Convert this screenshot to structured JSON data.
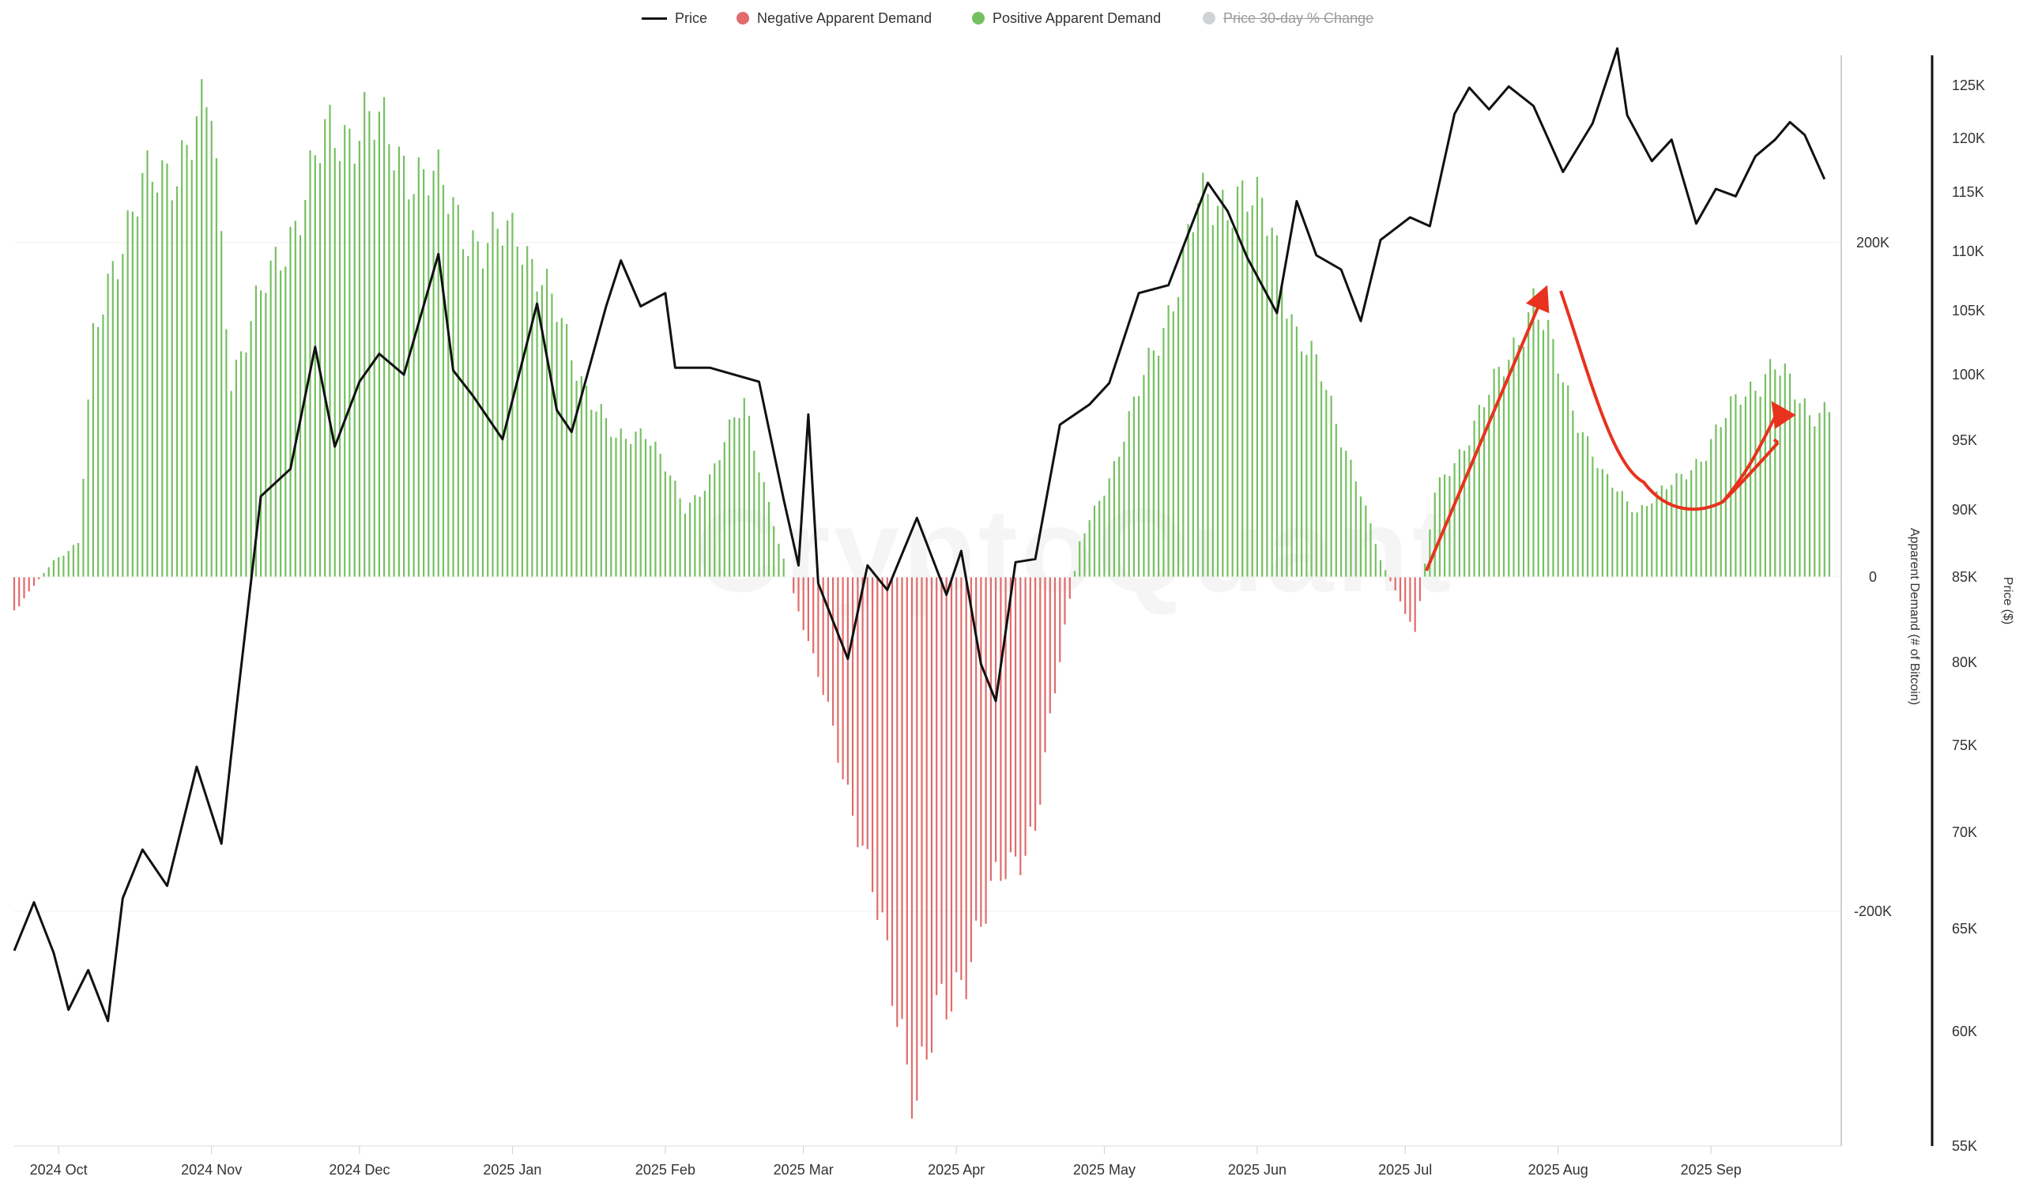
{
  "legend": {
    "price": "Price",
    "negative": "Negative Apparent Demand",
    "positive": "Positive Apparent Demand",
    "pct_change": "Price 30-day % Change"
  },
  "colors": {
    "price": "#111111",
    "negative": "#e06c6c",
    "positive": "#76c061",
    "disabled": "#cfd2d6",
    "annotation": "#e8321e"
  },
  "watermark": "CryptoQuant",
  "chart_data": {
    "type": "bar+line",
    "x_ticks": [
      "2024 Oct",
      "2024 Nov",
      "2024 Dec",
      "2025 Jan",
      "2025 Feb",
      "2025 Mar",
      "2025 Apr",
      "2025 May",
      "2025 Jun",
      "2025 Jul",
      "2025 Aug",
      "2025 Sep"
    ],
    "y_left_label": "Apparent Demand (# of Bitcoin)",
    "y_left_ticks": [
      "200K",
      "0",
      "-200K"
    ],
    "y_left_lim": [
      -330000,
      300000
    ],
    "y_right_label": "Price ($)",
    "y_right_ticks": [
      "125K",
      "120K",
      "115K",
      "110K",
      "105K",
      "100K",
      "95K",
      "90K",
      "85K",
      "80K",
      "75K",
      "70K",
      "65K",
      "60K",
      "55K"
    ],
    "y_right_lim": [
      55000,
      127000
    ],
    "y_right_scale": "log",
    "demand_keypoints": [
      {
        "date": "2024-09-22",
        "value": -20000
      },
      {
        "date": "2024-09-30",
        "value": 10000
      },
      {
        "date": "2024-10-05",
        "value": 20000
      },
      {
        "date": "2024-10-08",
        "value": 140000
      },
      {
        "date": "2024-10-12",
        "value": 190000
      },
      {
        "date": "2024-10-18",
        "value": 230000
      },
      {
        "date": "2024-10-25",
        "value": 250000
      },
      {
        "date": "2024-11-01",
        "value": 280000
      },
      {
        "date": "2024-11-05",
        "value": 120000
      },
      {
        "date": "2024-11-10",
        "value": 160000
      },
      {
        "date": "2024-11-16",
        "value": 200000
      },
      {
        "date": "2024-11-24",
        "value": 260000
      },
      {
        "date": "2024-12-02",
        "value": 275000
      },
      {
        "date": "2024-12-10",
        "value": 250000
      },
      {
        "date": "2024-12-18",
        "value": 230000
      },
      {
        "date": "2024-12-26",
        "value": 195000
      },
      {
        "date": "2025-01-02",
        "value": 210000
      },
      {
        "date": "2025-01-08",
        "value": 170000
      },
      {
        "date": "2025-01-15",
        "value": 120000
      },
      {
        "date": "2025-01-22",
        "value": 80000
      },
      {
        "date": "2025-01-28",
        "value": 90000
      },
      {
        "date": "2025-02-05",
        "value": 40000
      },
      {
        "date": "2025-02-10",
        "value": 60000
      },
      {
        "date": "2025-02-17",
        "value": 105000
      },
      {
        "date": "2025-02-24",
        "value": 20000
      },
      {
        "date": "2025-02-28",
        "value": -20000
      },
      {
        "date": "2025-03-06",
        "value": -80000
      },
      {
        "date": "2025-03-12",
        "value": -150000
      },
      {
        "date": "2025-03-18",
        "value": -230000
      },
      {
        "date": "2025-03-24",
        "value": -310000
      },
      {
        "date": "2025-03-28",
        "value": -270000
      },
      {
        "date": "2025-04-03",
        "value": -230000
      },
      {
        "date": "2025-04-10",
        "value": -180000
      },
      {
        "date": "2025-04-17",
        "value": -150000
      },
      {
        "date": "2025-04-23",
        "value": -30000
      },
      {
        "date": "2025-04-26",
        "value": 20000
      },
      {
        "date": "2025-05-02",
        "value": 60000
      },
      {
        "date": "2025-05-08",
        "value": 110000
      },
      {
        "date": "2025-05-14",
        "value": 160000
      },
      {
        "date": "2025-05-20",
        "value": 220000
      },
      {
        "date": "2025-05-28",
        "value": 230000
      },
      {
        "date": "2025-06-04",
        "value": 210000
      },
      {
        "date": "2025-06-09",
        "value": 145000
      },
      {
        "date": "2025-06-14",
        "value": 120000
      },
      {
        "date": "2025-06-21",
        "value": 60000
      },
      {
        "date": "2025-06-26",
        "value": 10000
      },
      {
        "date": "2025-06-30",
        "value": -15000
      },
      {
        "date": "2025-07-03",
        "value": -35000
      },
      {
        "date": "2025-07-07",
        "value": 50000
      },
      {
        "date": "2025-07-13",
        "value": 80000
      },
      {
        "date": "2025-07-20",
        "value": 120000
      },
      {
        "date": "2025-07-27",
        "value": 165000
      },
      {
        "date": "2025-08-03",
        "value": 110000
      },
      {
        "date": "2025-08-10",
        "value": 60000
      },
      {
        "date": "2025-08-17",
        "value": 40000
      },
      {
        "date": "2025-08-24",
        "value": 55000
      },
      {
        "date": "2025-08-31",
        "value": 75000
      },
      {
        "date": "2025-09-07",
        "value": 110000
      },
      {
        "date": "2025-09-14",
        "value": 125000
      },
      {
        "date": "2025-09-21",
        "value": 100000
      },
      {
        "date": "2025-09-25",
        "value": 100000
      }
    ],
    "price_keypoints": [
      {
        "date": "2024-09-22",
        "value": 63500
      },
      {
        "date": "2024-09-26",
        "value": 65800
      },
      {
        "date": "2024-09-30",
        "value": 63400
      },
      {
        "date": "2024-10-03",
        "value": 60800
      },
      {
        "date": "2024-10-07",
        "value": 62600
      },
      {
        "date": "2024-10-11",
        "value": 60300
      },
      {
        "date": "2024-10-14",
        "value": 66000
      },
      {
        "date": "2024-10-18",
        "value": 68400
      },
      {
        "date": "2024-10-23",
        "value": 66600
      },
      {
        "date": "2024-10-29",
        "value": 72700
      },
      {
        "date": "2024-11-03",
        "value": 68700
      },
      {
        "date": "2024-11-06",
        "value": 75800
      },
      {
        "date": "2024-11-11",
        "value": 88700
      },
      {
        "date": "2024-11-17",
        "value": 90500
      },
      {
        "date": "2024-11-22",
        "value": 99000
      },
      {
        "date": "2024-11-26",
        "value": 92000
      },
      {
        "date": "2024-12-01",
        "value": 96500
      },
      {
        "date": "2024-12-05",
        "value": 98500
      },
      {
        "date": "2024-12-10",
        "value": 97000
      },
      {
        "date": "2024-12-17",
        "value": 106000
      },
      {
        "date": "2024-12-20",
        "value": 97300
      },
      {
        "date": "2024-12-24",
        "value": 95500
      },
      {
        "date": "2024-12-30",
        "value": 92500
      },
      {
        "date": "2025-01-06",
        "value": 102200
      },
      {
        "date": "2025-01-10",
        "value": 94500
      },
      {
        "date": "2025-01-13",
        "value": 93000
      },
      {
        "date": "2025-01-20",
        "value": 102000
      },
      {
        "date": "2025-01-23",
        "value": 105500
      },
      {
        "date": "2025-01-27",
        "value": 102000
      },
      {
        "date": "2025-02-01",
        "value": 103000
      },
      {
        "date": "2025-02-03",
        "value": 97500
      },
      {
        "date": "2025-02-10",
        "value": 97500
      },
      {
        "date": "2025-02-20",
        "value": 96500
      },
      {
        "date": "2025-02-25",
        "value": 88500
      },
      {
        "date": "2025-02-28",
        "value": 84300
      },
      {
        "date": "2025-03-02",
        "value": 94200
      },
      {
        "date": "2025-03-04",
        "value": 83200
      },
      {
        "date": "2025-03-10",
        "value": 78700
      },
      {
        "date": "2025-03-14",
        "value": 84300
      },
      {
        "date": "2025-03-18",
        "value": 82800
      },
      {
        "date": "2025-03-24",
        "value": 87300
      },
      {
        "date": "2025-03-30",
        "value": 82500
      },
      {
        "date": "2025-04-02",
        "value": 85200
      },
      {
        "date": "2025-04-06",
        "value": 78400
      },
      {
        "date": "2025-04-09",
        "value": 76300
      },
      {
        "date": "2025-04-13",
        "value": 84500
      },
      {
        "date": "2025-04-17",
        "value": 84700
      },
      {
        "date": "2025-04-22",
        "value": 93500
      },
      {
        "date": "2025-04-28",
        "value": 94900
      },
      {
        "date": "2025-05-02",
        "value": 96400
      },
      {
        "date": "2025-05-08",
        "value": 103000
      },
      {
        "date": "2025-05-14",
        "value": 103600
      },
      {
        "date": "2025-05-22",
        "value": 111700
      },
      {
        "date": "2025-05-26",
        "value": 109400
      },
      {
        "date": "2025-05-30",
        "value": 105700
      },
      {
        "date": "2025-06-05",
        "value": 101500
      },
      {
        "date": "2025-06-09",
        "value": 110200
      },
      {
        "date": "2025-06-13",
        "value": 105900
      },
      {
        "date": "2025-06-18",
        "value": 104800
      },
      {
        "date": "2025-06-22",
        "value": 100900
      },
      {
        "date": "2025-06-26",
        "value": 107100
      },
      {
        "date": "2025-07-02",
        "value": 108900
      },
      {
        "date": "2025-07-06",
        "value": 108200
      },
      {
        "date": "2025-07-11",
        "value": 117500
      },
      {
        "date": "2025-07-14",
        "value": 119800
      },
      {
        "date": "2025-07-18",
        "value": 117900
      },
      {
        "date": "2025-07-22",
        "value": 119900
      },
      {
        "date": "2025-07-27",
        "value": 118200
      },
      {
        "date": "2025-08-02",
        "value": 112600
      },
      {
        "date": "2025-08-08",
        "value": 116700
      },
      {
        "date": "2025-08-13",
        "value": 123300
      },
      {
        "date": "2025-08-15",
        "value": 117400
      },
      {
        "date": "2025-08-20",
        "value": 113500
      },
      {
        "date": "2025-08-24",
        "value": 115300
      },
      {
        "date": "2025-08-29",
        "value": 108400
      },
      {
        "date": "2025-09-02",
        "value": 111200
      },
      {
        "date": "2025-09-06",
        "value": 110600
      },
      {
        "date": "2025-09-10",
        "value": 113900
      },
      {
        "date": "2025-09-14",
        "value": 115300
      },
      {
        "date": "2025-09-17",
        "value": 116800
      },
      {
        "date": "2025-09-20",
        "value": 115700
      },
      {
        "date": "2025-09-24",
        "value": 112000
      }
    ]
  }
}
